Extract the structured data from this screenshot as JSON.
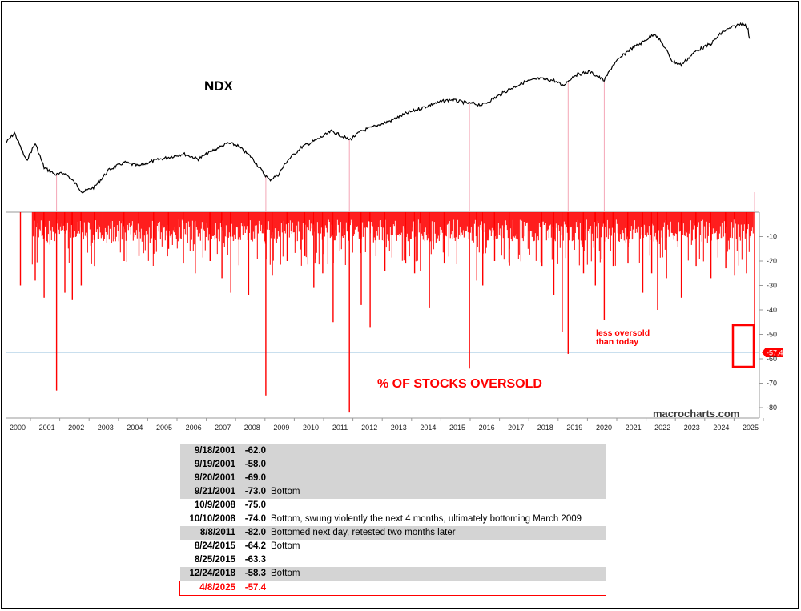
{
  "chart_data": {
    "type": "line+bar",
    "top_panel": {
      "series_name": "NDX",
      "points": [
        [
          "2000.0",
          0.72
        ],
        [
          "2000.3",
          0.66
        ],
        [
          "2000.7",
          0.82
        ],
        [
          "2001.0",
          0.72
        ],
        [
          "2001.3",
          0.86
        ],
        [
          "2001.7",
          0.9
        ],
        [
          "2002.0",
          0.89
        ],
        [
          "2002.3",
          0.94
        ],
        [
          "2002.6",
          1.0
        ],
        [
          "2003.0",
          0.97
        ],
        [
          "2003.5",
          0.87
        ],
        [
          "2004.0",
          0.83
        ],
        [
          "2004.5",
          0.85
        ],
        [
          "2005.0",
          0.82
        ],
        [
          "2005.5",
          0.8
        ],
        [
          "2006.0",
          0.78
        ],
        [
          "2006.5",
          0.81
        ],
        [
          "2007.0",
          0.76
        ],
        [
          "2007.5",
          0.72
        ],
        [
          "2007.8",
          0.73
        ],
        [
          "2008.3",
          0.8
        ],
        [
          "2008.7",
          0.89
        ],
        [
          "2008.9",
          0.93
        ],
        [
          "2009.2",
          0.9
        ],
        [
          "2009.5",
          0.82
        ],
        [
          "2010.0",
          0.74
        ],
        [
          "2010.5",
          0.7
        ],
        [
          "2011.0",
          0.65
        ],
        [
          "2011.6",
          0.7
        ],
        [
          "2012.0",
          0.65
        ],
        [
          "2012.5",
          0.62
        ],
        [
          "2013.0",
          0.59
        ],
        [
          "2013.5",
          0.55
        ],
        [
          "2014.0",
          0.52
        ],
        [
          "2014.5",
          0.49
        ],
        [
          "2015.0",
          0.47
        ],
        [
          "2015.6",
          0.49
        ],
        [
          "2016.1",
          0.5
        ],
        [
          "2016.5",
          0.46
        ],
        [
          "2017.0",
          0.41
        ],
        [
          "2017.5",
          0.37
        ],
        [
          "2018.0",
          0.35
        ],
        [
          "2018.5",
          0.36
        ],
        [
          "2018.8",
          0.39
        ],
        [
          "2019.2",
          0.33
        ],
        [
          "2019.7",
          0.31
        ],
        [
          "2020.2",
          0.36
        ],
        [
          "2020.5",
          0.27
        ],
        [
          "2021.0",
          0.19
        ],
        [
          "2021.5",
          0.14
        ],
        [
          "2021.9",
          0.09
        ],
        [
          "2022.2",
          0.16
        ],
        [
          "2022.5",
          0.25
        ],
        [
          "2022.8",
          0.27
        ],
        [
          "2023.3",
          0.19
        ],
        [
          "2023.8",
          0.15
        ],
        [
          "2024.2",
          0.08
        ],
        [
          "2024.6",
          0.05
        ],
        [
          "2024.9",
          0.03
        ],
        [
          "2025.05",
          0.07
        ],
        [
          "2025.1",
          0.12
        ]
      ]
    },
    "bottom_panel": {
      "series_name": "% OF STOCKS OVERSOLD",
      "y_ticks": [
        "-10",
        "-20",
        "-30",
        "-40",
        "-50",
        "-60",
        "-70",
        "-80"
      ],
      "ylim": [
        -84,
        0
      ],
      "spikes": [
        [
          "2000.5",
          -30
        ],
        [
          "2001.0",
          -28
        ],
        [
          "2001.3",
          -35
        ],
        [
          "2001.72",
          -73
        ],
        [
          "2002.0",
          -33
        ],
        [
          "2002.25",
          -36
        ],
        [
          "2002.55",
          -30
        ],
        [
          "2003.0",
          -22
        ],
        [
          "2004.0",
          -20
        ],
        [
          "2004.5",
          -18
        ],
        [
          "2005.0",
          -17
        ],
        [
          "2005.5",
          -15
        ],
        [
          "2006.0",
          -21
        ],
        [
          "2006.4",
          -25
        ],
        [
          "2006.9",
          -20
        ],
        [
          "2007.3",
          -27
        ],
        [
          "2007.6",
          -33
        ],
        [
          "2008.2",
          -34
        ],
        [
          "2008.78",
          -75
        ],
        [
          "2009.0",
          -26
        ],
        [
          "2009.5",
          -20
        ],
        [
          "2010.1",
          -18
        ],
        [
          "2010.4",
          -31
        ],
        [
          "2010.7",
          -25
        ],
        [
          "2011.05",
          -45
        ],
        [
          "2011.6",
          -82
        ],
        [
          "2012.0",
          -38
        ],
        [
          "2012.3",
          -47
        ],
        [
          "2012.8",
          -24
        ],
        [
          "2013.5",
          -21
        ],
        [
          "2013.8",
          -25
        ],
        [
          "2014.0",
          -24
        ],
        [
          "2014.3",
          -39
        ],
        [
          "2014.8",
          -21
        ],
        [
          "2015.65",
          -64
        ],
        [
          "2015.9",
          -28
        ],
        [
          "2016.1",
          -30
        ],
        [
          "2016.5",
          -20
        ],
        [
          "2017.0",
          -15
        ],
        [
          "2018.1",
          -22
        ],
        [
          "2018.5",
          -34
        ],
        [
          "2018.78",
          -49
        ],
        [
          "2018.98",
          -58
        ],
        [
          "2019.5",
          -25
        ],
        [
          "2019.9",
          -30
        ],
        [
          "2020.2",
          -44
        ],
        [
          "2020.5",
          -22
        ],
        [
          "2021.0",
          -21
        ],
        [
          "2021.5",
          -33
        ],
        [
          "2021.8",
          -25
        ],
        [
          "2022.0",
          -40
        ],
        [
          "2022.3",
          -27
        ],
        [
          "2022.8",
          -35
        ],
        [
          "2023.3",
          -22
        ],
        [
          "2023.8",
          -27
        ],
        [
          "2024.3",
          -23
        ],
        [
          "2024.6",
          -26
        ],
        [
          "2025.0",
          -25
        ],
        [
          "2025.27",
          -57.4
        ]
      ],
      "current_value_label": "-57.4",
      "annotation_line1": "less oversold",
      "annotation_line2": "than today"
    },
    "x_ticks": [
      "2000",
      "2001",
      "2002",
      "2003",
      "2004",
      "2005",
      "2006",
      "2007",
      "2008",
      "2009",
      "2010",
      "2011",
      "2012",
      "2013",
      "2014",
      "2015",
      "2016",
      "2017",
      "2018",
      "2019",
      "2020",
      "2021",
      "2022",
      "2023",
      "2024",
      "2025"
    ],
    "watermark": "macrocharts.com",
    "colors": {
      "line": "#000000",
      "bars": "#ff0000",
      "connectors": "#f4a6b6",
      "ref_line": "#a9cce3"
    }
  },
  "table": {
    "rows": [
      {
        "date": "9/18/2001",
        "value": "-62.0",
        "note": "",
        "style": "shade"
      },
      {
        "date": "9/19/2001",
        "value": "-58.0",
        "note": "",
        "style": "shade"
      },
      {
        "date": "9/20/2001",
        "value": "-69.0",
        "note": "",
        "style": "shade"
      },
      {
        "date": "9/21/2001",
        "value": "-73.0",
        "note": "Bottom",
        "style": "shade"
      },
      {
        "date": "10/9/2008",
        "value": "-75.0",
        "note": "",
        "style": "plain"
      },
      {
        "date": "10/10/2008",
        "value": "-74.0",
        "note": "Bottom, swung violently the next  4 months, ultimately bottoming March 2009",
        "style": "plain"
      },
      {
        "date": "8/8/2011",
        "value": "-82.0",
        "note": "Bottomed next day, retested two months later",
        "style": "shade"
      },
      {
        "date": "8/24/2015",
        "value": "-64.2",
        "note": "Bottom",
        "style": "plain"
      },
      {
        "date": "8/25/2015",
        "value": "-63.3",
        "note": "",
        "style": "plain"
      },
      {
        "date": "12/24/2018",
        "value": "-58.3",
        "note": "Bottom",
        "style": "shade"
      },
      {
        "date": "4/8/2025",
        "value": "-57.4",
        "note": "",
        "style": "hl"
      }
    ]
  }
}
